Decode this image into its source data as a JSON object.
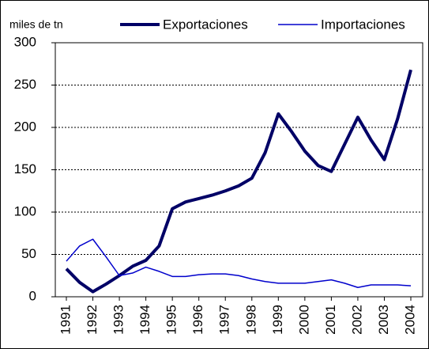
{
  "chart_data": {
    "type": "line",
    "y_label": "miles de tn",
    "categories": [
      "1991",
      null,
      "1992",
      null,
      "1993",
      null,
      "1994",
      null,
      "1995",
      null,
      "1996",
      null,
      "1997",
      null,
      "1998",
      null,
      "1999",
      null,
      "2000",
      null,
      "2001",
      null,
      "2002",
      null,
      "2003",
      null,
      "2004"
    ],
    "series": [
      {
        "name": "Exportaciones",
        "color": "#000066",
        "width": 4,
        "values": [
          33,
          17,
          6,
          15,
          25,
          36,
          43,
          60,
          104,
          112,
          116,
          120,
          125,
          131,
          140,
          170,
          216,
          195,
          172,
          155,
          148,
          180,
          212,
          185,
          162,
          210,
          268
        ]
      },
      {
        "name": "Importaciones",
        "color": "#0000cc",
        "width": 1.5,
        "values": [
          42,
          60,
          68,
          47,
          25,
          28,
          35,
          30,
          24,
          24,
          26,
          27,
          27,
          25,
          21,
          18,
          16,
          16,
          16,
          18,
          20,
          16,
          11,
          14,
          14,
          14,
          13
        ]
      }
    ],
    "ylim": [
      0,
      300
    ],
    "yticks": [
      0,
      50,
      100,
      150,
      200,
      250,
      300
    ],
    "grid": true
  }
}
